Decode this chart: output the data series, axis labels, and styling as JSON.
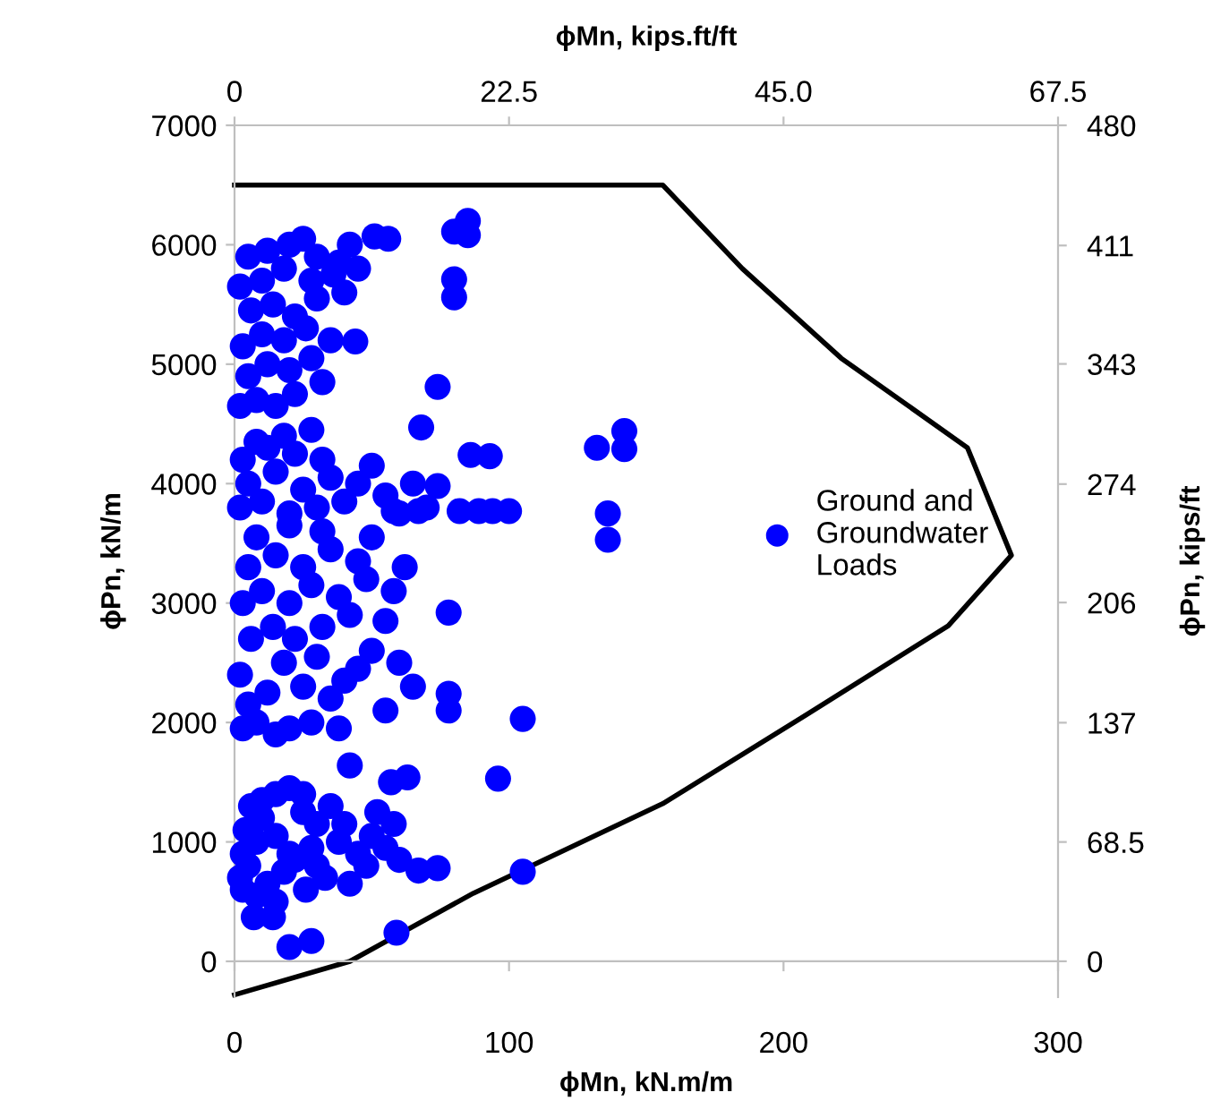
{
  "chart_data": {
    "type": "scatter",
    "xlabel": "ϕMn, kN.m/m",
    "ylabel": "ϕPn, kN/m",
    "y2label": "ϕPn, kips/ft",
    "x2label": "ϕMn, kips.ft/ft",
    "xlim": [
      0,
      300
    ],
    "xticks": [
      0,
      100,
      200,
      300
    ],
    "ylim": [
      -300,
      7000
    ],
    "yticks": [
      0,
      1000,
      2000,
      3000,
      4000,
      5000,
      6000,
      7000
    ],
    "x2lim": [
      0,
      67.5
    ],
    "x2ticks": [
      0,
      22.5,
      {
        "value": 45,
        "label": "45.0"
      },
      67.5
    ],
    "y2lim": [
      -20.6,
      480
    ],
    "y2ticks": [
      0,
      68.5,
      137,
      206,
      274,
      343,
      411,
      480
    ],
    "grid": false,
    "legend": "right",
    "marker": "circle",
    "series": [
      {
        "type": "line",
        "color": "#000000",
        "marker": "none",
        "line_style": "solid",
        "x": [
          0,
          42,
          87,
          156,
          208,
          260,
          283,
          267,
          221,
          185,
          156,
          0
        ],
        "values": [
          -280,
          0,
          570,
          1320,
          2060,
          2810,
          3400,
          4300,
          5050,
          5800,
          6500,
          6500
        ]
      },
      {
        "name": "Ground and\nGroundwater\nLoads",
        "color": "#0000ff",
        "x": [
          85,
          80,
          85,
          51,
          56,
          80,
          80,
          44,
          74,
          68,
          86,
          93,
          132,
          142,
          142,
          136,
          136,
          82,
          89,
          94,
          100,
          67,
          58,
          74,
          78,
          78,
          78,
          105,
          96,
          105,
          74,
          67,
          59,
          20,
          28,
          7,
          14,
          42,
          63,
          57,
          2,
          5,
          3,
          8,
          4,
          10,
          6,
          15,
          20,
          25,
          12,
          18,
          22,
          28,
          15,
          30,
          25,
          35,
          20,
          10,
          30,
          38,
          40,
          45,
          50,
          33,
          42,
          48,
          55,
          58,
          52,
          60,
          8,
          3,
          26,
          15,
          3,
          8,
          15,
          20,
          28,
          5,
          12,
          25,
          35,
          40,
          2,
          18,
          30,
          45,
          50,
          6,
          14,
          22,
          32,
          42,
          55,
          3,
          10,
          20,
          28,
          38,
          48,
          58,
          5,
          15,
          25,
          35,
          45,
          8,
          20,
          32,
          50,
          60,
          65,
          62,
          55,
          38,
          2,
          10,
          20,
          30,
          40,
          5,
          15,
          25,
          35,
          45,
          3,
          12,
          22,
          32,
          50,
          8,
          18,
          28,
          55,
          65,
          60,
          70,
          2,
          8,
          15,
          22,
          5,
          12,
          20,
          28,
          3,
          10,
          18,
          26,
          6,
          14,
          22,
          30,
          2,
          10,
          18,
          28,
          36,
          5,
          12,
          20,
          30,
          38,
          45,
          42,
          32,
          35,
          40,
          25
        ],
        "values": [
          6200,
          6110,
          6080,
          6070,
          6050,
          5710,
          5560,
          5190,
          4810,
          4470,
          4240,
          4230,
          4300,
          4440,
          4290,
          3750,
          3530,
          3770,
          3770,
          3770,
          3770,
          3770,
          3770,
          3980,
          2920,
          2240,
          2100,
          2030,
          1530,
          750,
          780,
          760,
          240,
          120,
          170,
          370,
          370,
          1640,
          1540,
          1500,
          700,
          800,
          900,
          1000,
          1100,
          1200,
          1300,
          1400,
          1450,
          1400,
          650,
          750,
          850,
          950,
          1050,
          1150,
          1250,
          1300,
          900,
          1350,
          800,
          1000,
          1150,
          900,
          1050,
          700,
          650,
          800,
          950,
          1150,
          1250,
          850,
          550,
          600,
          600,
          500,
          1950,
          2000,
          1900,
          1950,
          2000,
          2150,
          2250,
          2300,
          2200,
          2350,
          2400,
          2500,
          2550,
          2450,
          2600,
          2700,
          2800,
          2700,
          2800,
          2900,
          2850,
          3000,
          3100,
          3000,
          3150,
          3050,
          3200,
          3100,
          3300,
          3400,
          3300,
          3450,
          3350,
          3550,
          3650,
          3600,
          3550,
          2500,
          2300,
          3300,
          2100,
          1950,
          3800,
          3850,
          3750,
          3800,
          3850,
          4000,
          4100,
          3950,
          4050,
          4000,
          4200,
          4300,
          4250,
          4200,
          4150,
          4350,
          4400,
          4450,
          3900,
          4000,
          3750,
          3800,
          4650,
          4700,
          4650,
          4750,
          4900,
          5000,
          4950,
          5050,
          5150,
          5250,
          5200,
          5300,
          5450,
          5500,
          5400,
          5550,
          5650,
          5700,
          5800,
          5700,
          5750,
          5900,
          5950,
          6000,
          5900,
          5850,
          5800,
          6000,
          4850,
          5200,
          5600,
          6050
        ]
      }
    ]
  }
}
